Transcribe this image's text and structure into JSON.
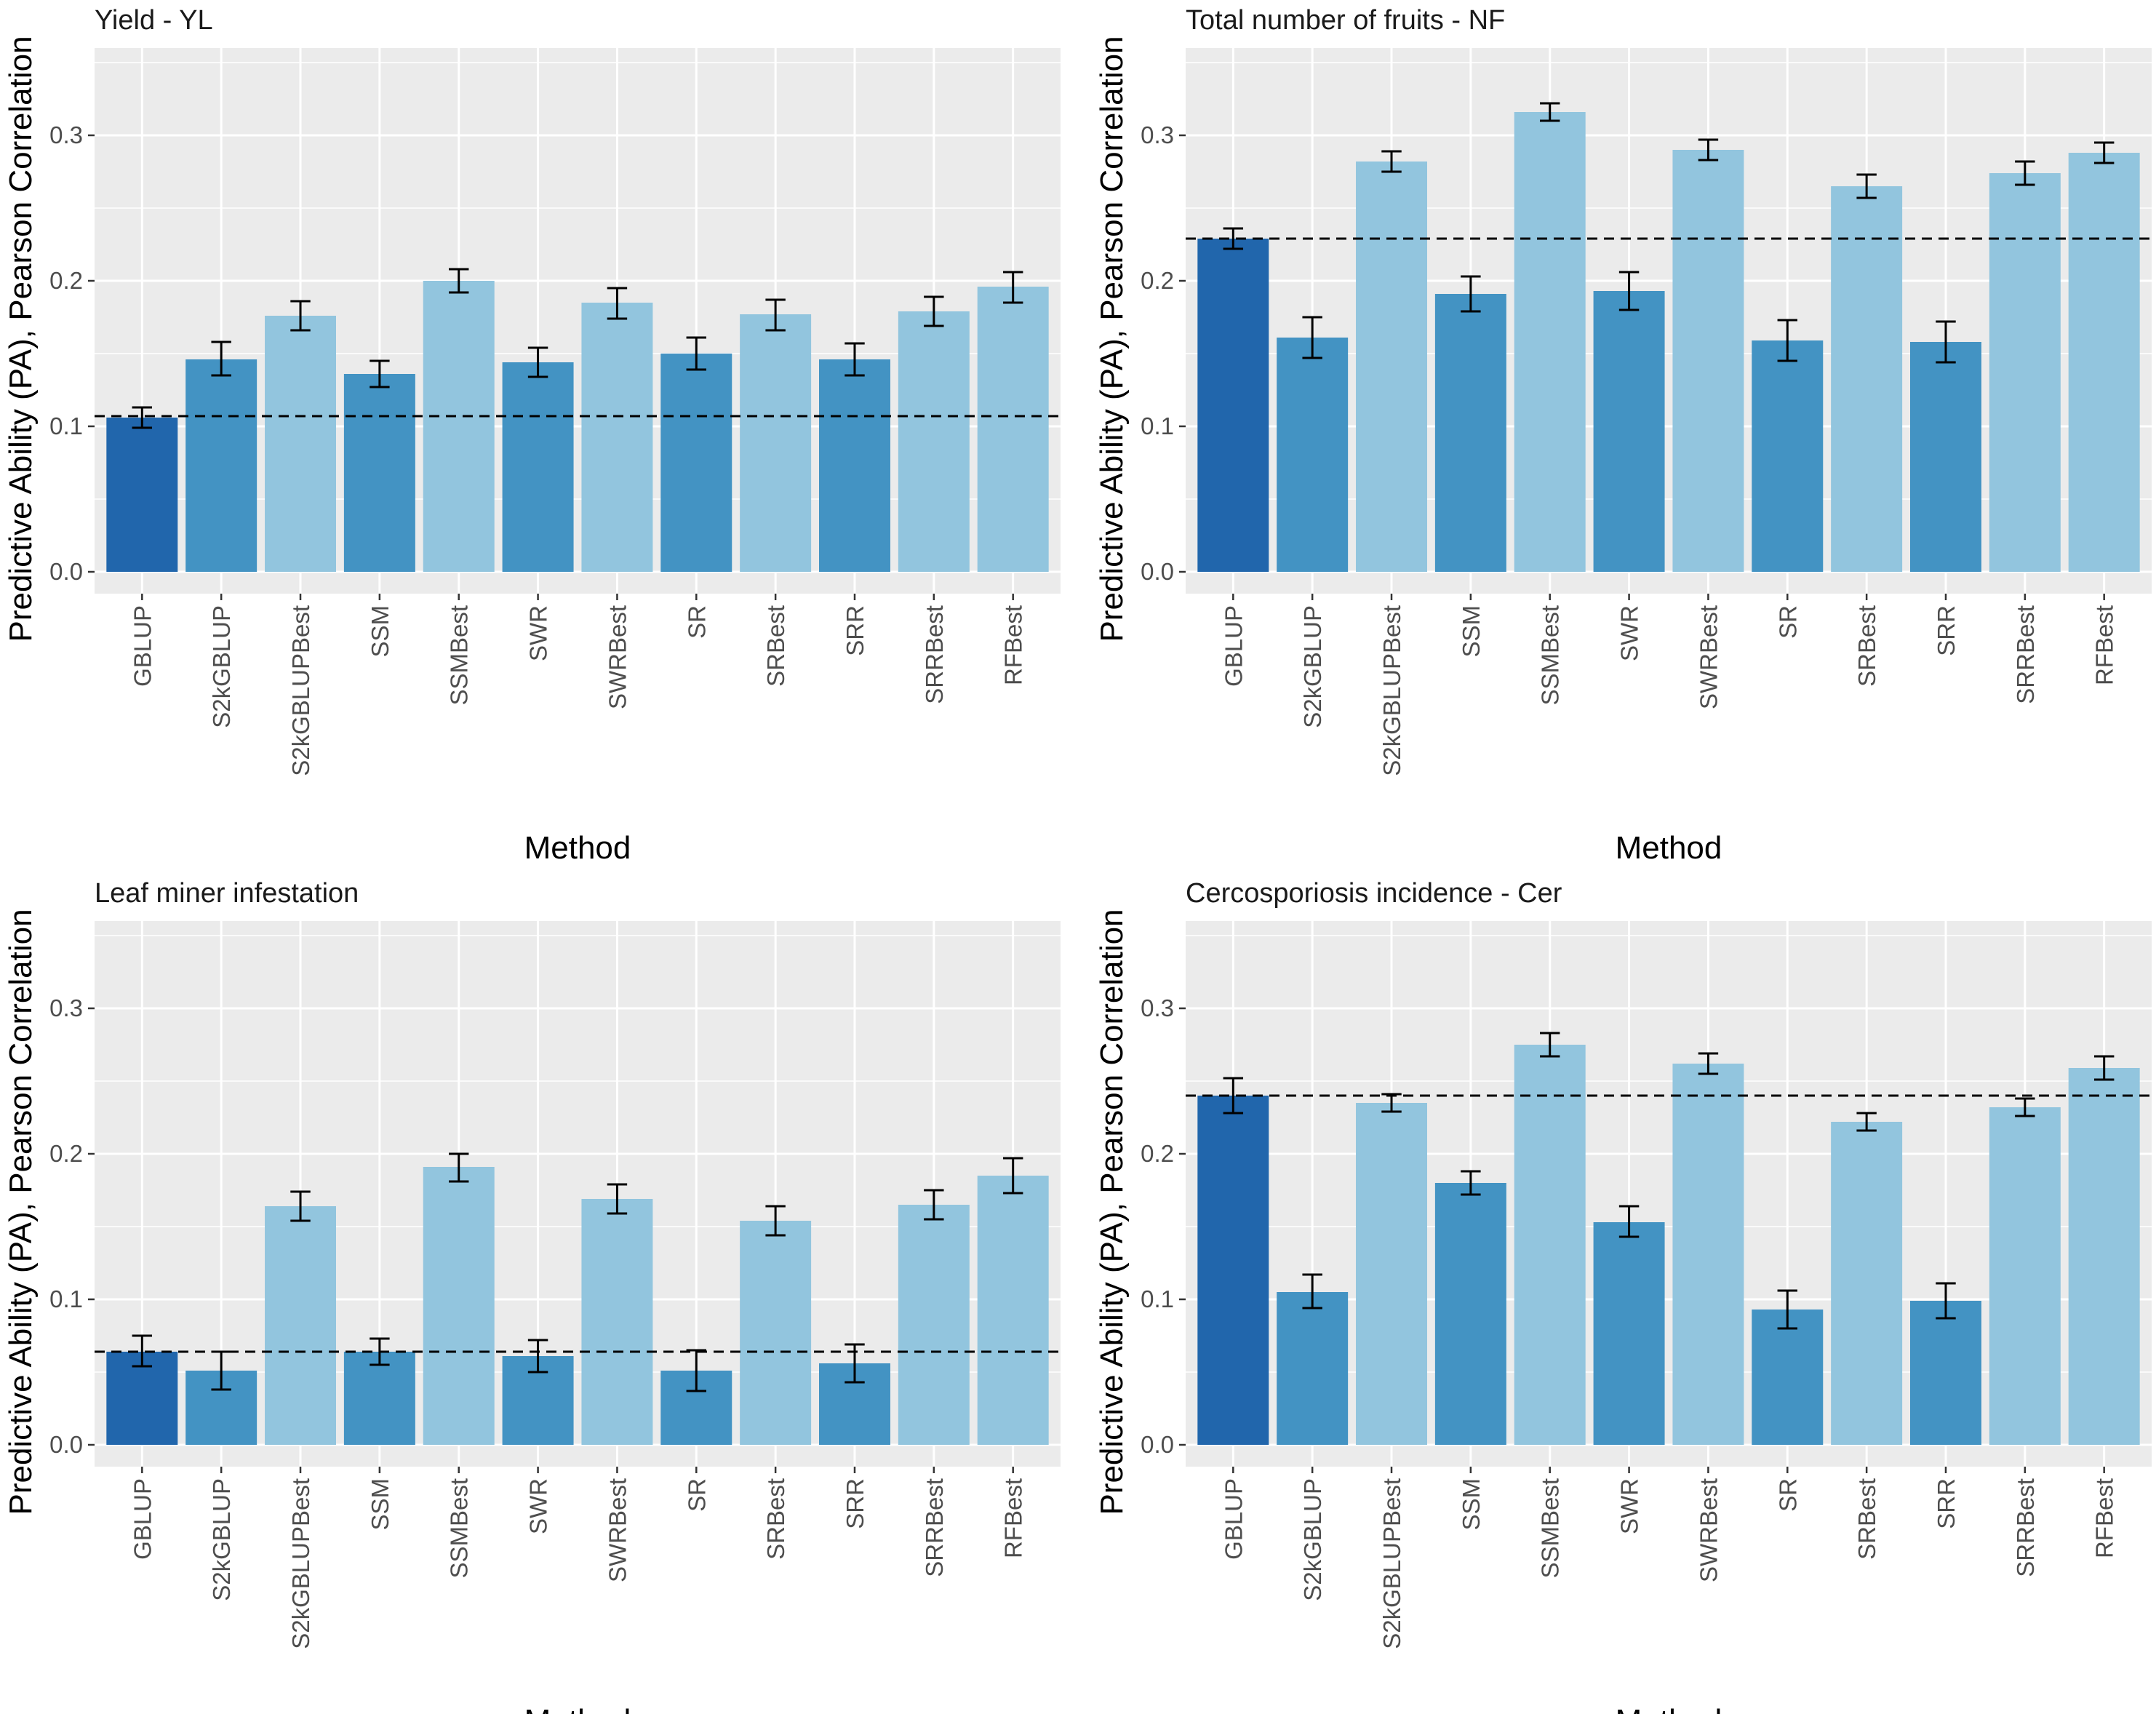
{
  "colors": {
    "panel_bg": "#EBEBEB",
    "grid": "#FFFFFF",
    "baseline_bar": "#2166AC",
    "standard_bar": "#4393C3",
    "best_bar": "#92C5DE",
    "error_bar": "#000000",
    "reference_line": "#000000"
  },
  "chart_data": [
    {
      "type": "bar",
      "title": "Yield - YL",
      "xlabel": "Method",
      "ylabel": "Predictive Ability (PA), Pearson Correlation",
      "ylim": [
        -0.015,
        0.36
      ],
      "yticks": [
        0.0,
        0.1,
        0.2,
        0.3
      ],
      "ytick_labels": [
        "0.0",
        "0.1",
        "0.2",
        "0.3"
      ],
      "categories": [
        "GBLUP",
        "S2kGBLUP",
        "S2kGBLUPBest",
        "SSM",
        "SSMBest",
        "SWR",
        "SWRBest",
        "SR",
        "SRBest",
        "SRR",
        "SRRBest",
        "RFBest"
      ],
      "groups": [
        "baseline",
        "standard",
        "best",
        "standard",
        "best",
        "standard",
        "best",
        "standard",
        "best",
        "standard",
        "best",
        "best"
      ],
      "values": [
        0.106,
        0.146,
        0.176,
        0.136,
        0.2,
        0.144,
        0.185,
        0.15,
        0.177,
        0.146,
        0.179,
        0.196
      ],
      "error_low": [
        0.099,
        0.135,
        0.166,
        0.127,
        0.192,
        0.134,
        0.174,
        0.139,
        0.166,
        0.135,
        0.169,
        0.185
      ],
      "error_high": [
        0.113,
        0.158,
        0.186,
        0.145,
        0.208,
        0.154,
        0.195,
        0.161,
        0.187,
        0.157,
        0.189,
        0.206
      ],
      "reference_line": 0.107,
      "grid": true
    },
    {
      "type": "bar",
      "title": "Total number of fruits - NF",
      "xlabel": "Method",
      "ylabel": "Predictive Ability (PA), Pearson Correlation",
      "ylim": [
        -0.015,
        0.36
      ],
      "yticks": [
        0.0,
        0.1,
        0.2,
        0.3
      ],
      "ytick_labels": [
        "0.0",
        "0.1",
        "0.2",
        "0.3"
      ],
      "categories": [
        "GBLUP",
        "S2kGBLUP",
        "S2kGBLUPBest",
        "SSM",
        "SSMBest",
        "SWR",
        "SWRBest",
        "SR",
        "SRBest",
        "SRR",
        "SRRBest",
        "RFBest"
      ],
      "groups": [
        "baseline",
        "standard",
        "best",
        "standard",
        "best",
        "standard",
        "best",
        "standard",
        "best",
        "standard",
        "best",
        "best"
      ],
      "values": [
        0.229,
        0.161,
        0.282,
        0.191,
        0.316,
        0.193,
        0.29,
        0.159,
        0.265,
        0.158,
        0.274,
        0.288
      ],
      "error_low": [
        0.222,
        0.147,
        0.275,
        0.179,
        0.31,
        0.18,
        0.283,
        0.145,
        0.257,
        0.144,
        0.266,
        0.281
      ],
      "error_high": [
        0.236,
        0.175,
        0.289,
        0.203,
        0.322,
        0.206,
        0.297,
        0.173,
        0.273,
        0.172,
        0.282,
        0.295
      ],
      "reference_line": 0.229,
      "grid": true
    },
    {
      "type": "bar",
      "title": "Leaf miner infestation",
      "xlabel": "Method",
      "ylabel": "Predictive Ability (PA), Pearson Correlation",
      "ylim": [
        -0.015,
        0.36
      ],
      "yticks": [
        0.0,
        0.1,
        0.2,
        0.3
      ],
      "ytick_labels": [
        "0.0",
        "0.1",
        "0.2",
        "0.3"
      ],
      "categories": [
        "GBLUP",
        "S2kGBLUP",
        "S2kGBLUPBest",
        "SSM",
        "SSMBest",
        "SWR",
        "SWRBest",
        "SR",
        "SRBest",
        "SRR",
        "SRRBest",
        "RFBest"
      ],
      "groups": [
        "baseline",
        "standard",
        "best",
        "standard",
        "best",
        "standard",
        "best",
        "standard",
        "best",
        "standard",
        "best",
        "best"
      ],
      "values": [
        0.064,
        0.051,
        0.164,
        0.064,
        0.191,
        0.061,
        0.169,
        0.051,
        0.154,
        0.056,
        0.165,
        0.185
      ],
      "error_low": [
        0.054,
        0.038,
        0.154,
        0.055,
        0.181,
        0.05,
        0.159,
        0.037,
        0.144,
        0.043,
        0.155,
        0.173
      ],
      "error_high": [
        0.075,
        0.064,
        0.174,
        0.073,
        0.2,
        0.072,
        0.179,
        0.065,
        0.164,
        0.069,
        0.175,
        0.197
      ],
      "reference_line": 0.064,
      "grid": true
    },
    {
      "type": "bar",
      "title": "Cercosporiosis incidence - Cer",
      "xlabel": "Method",
      "ylabel": "Predictive Ability (PA), Pearson Correlation",
      "ylim": [
        -0.015,
        0.36
      ],
      "yticks": [
        0.0,
        0.1,
        0.2,
        0.3
      ],
      "ytick_labels": [
        "0.0",
        "0.1",
        "0.2",
        "0.3"
      ],
      "categories": [
        "GBLUP",
        "S2kGBLUP",
        "S2kGBLUPBest",
        "SSM",
        "SSMBest",
        "SWR",
        "SWRBest",
        "SR",
        "SRBest",
        "SRR",
        "SRRBest",
        "RFBest"
      ],
      "groups": [
        "baseline",
        "standard",
        "best",
        "standard",
        "best",
        "standard",
        "best",
        "standard",
        "best",
        "standard",
        "best",
        "best"
      ],
      "values": [
        0.24,
        0.105,
        0.235,
        0.18,
        0.275,
        0.153,
        0.262,
        0.093,
        0.222,
        0.099,
        0.232,
        0.259
      ],
      "error_low": [
        0.228,
        0.094,
        0.229,
        0.172,
        0.267,
        0.143,
        0.255,
        0.08,
        0.216,
        0.087,
        0.226,
        0.251
      ],
      "error_high": [
        0.252,
        0.117,
        0.241,
        0.188,
        0.283,
        0.164,
        0.269,
        0.106,
        0.228,
        0.111,
        0.238,
        0.267
      ],
      "reference_line": 0.24,
      "grid": true
    }
  ]
}
